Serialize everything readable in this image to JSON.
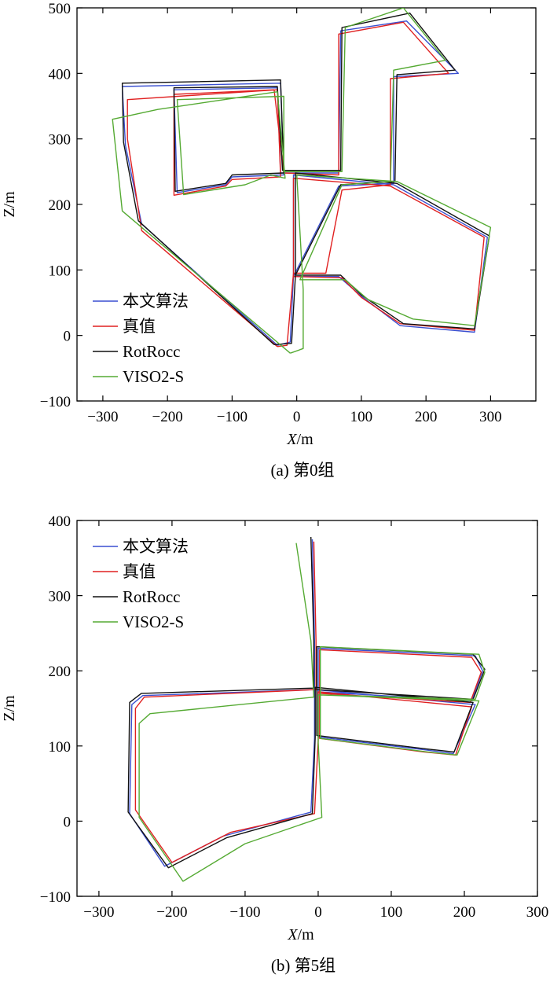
{
  "colors": {
    "ours": "#3a4fd0",
    "gt": "#e02020",
    "rotrocc": "#111111",
    "viso": "#55aa33"
  },
  "chart_data": [
    {
      "type": "line",
      "caption": "(a) 第0组",
      "xlabel_var": "X",
      "xlabel_unit": "/m",
      "ylabel": "Z/m",
      "xlim": [
        -340,
        370
      ],
      "ylim": [
        -100,
        500
      ],
      "xticks": [
        "−300",
        "−200",
        "−100",
        "0",
        "100",
        "200",
        "300"
      ],
      "yticks": [
        "−100",
        "0",
        "100",
        "200",
        "300",
        "400",
        "500"
      ],
      "legend_position": "bottom-left",
      "series": [
        {
          "name": "本文算法",
          "color": "#3a4fd0",
          "points": [
            [
              -30,
              -15
            ],
            [
              -240,
              170
            ],
            [
              -265,
              290
            ],
            [
              -270,
              380
            ],
            [
              -25,
              385
            ],
            [
              -20,
              245
            ],
            [
              -100,
              242
            ],
            [
              -110,
              230
            ],
            [
              -185,
              218
            ],
            [
              -190,
              375
            ],
            [
              -30,
              378
            ],
            [
              -25,
              248
            ],
            [
              65,
              248
            ],
            [
              68,
              465
            ],
            [
              170,
              480
            ],
            [
              250,
              400
            ],
            [
              150,
              395
            ],
            [
              150,
              232
            ],
            [
              65,
              228
            ],
            [
              -5,
              90
            ],
            [
              65,
              90
            ],
            [
              100,
              60
            ],
            [
              160,
              15
            ],
            [
              275,
              5
            ],
            [
              295,
              150
            ],
            [
              150,
              230
            ],
            [
              -5,
              245
            ],
            [
              -5,
              90
            ],
            [
              -10,
              -10
            ],
            [
              -30,
              -15
            ]
          ]
        },
        {
          "name": "真值",
          "color": "#e02020",
          "points": [
            [
              -30,
              -17
            ],
            [
              -240,
              160
            ],
            [
              -262,
              300
            ],
            [
              -262,
              360
            ],
            [
              -30,
              375
            ],
            [
              -25,
              242
            ],
            [
              -100,
              238
            ],
            [
              -110,
              228
            ],
            [
              -190,
              214
            ],
            [
              -190,
              368
            ],
            [
              -35,
              375
            ],
            [
              -20,
              248
            ],
            [
              65,
              245
            ],
            [
              65,
              460
            ],
            [
              165,
              478
            ],
            [
              235,
              400
            ],
            [
              145,
              392
            ],
            [
              145,
              230
            ],
            [
              70,
              222
            ],
            [
              45,
              95
            ],
            [
              -5,
              95
            ],
            [
              -5,
              90
            ],
            [
              70,
              88
            ],
            [
              100,
              58
            ],
            [
              160,
              18
            ],
            [
              275,
              8
            ],
            [
              290,
              150
            ],
            [
              145,
              228
            ],
            [
              -5,
              240
            ],
            [
              -5,
              95
            ],
            [
              -15,
              -15
            ],
            [
              -30,
              -17
            ]
          ]
        },
        {
          "name": "RotRocc",
          "color": "#111111",
          "points": [
            [
              -35,
              -14
            ],
            [
              -245,
              175
            ],
            [
              -268,
              295
            ],
            [
              -270,
              385
            ],
            [
              -25,
              390
            ],
            [
              -20,
              248
            ],
            [
              -100,
              245
            ],
            [
              -110,
              232
            ],
            [
              -188,
              220
            ],
            [
              -190,
              378
            ],
            [
              -30,
              380
            ],
            [
              -22,
              252
            ],
            [
              68,
              252
            ],
            [
              70,
              470
            ],
            [
              175,
              492
            ],
            [
              245,
              405
            ],
            [
              155,
              398
            ],
            [
              152,
              235
            ],
            [
              68,
              230
            ],
            [
              -2,
              92
            ],
            [
              68,
              92
            ],
            [
              100,
              62
            ],
            [
              165,
              18
            ],
            [
              275,
              10
            ],
            [
              298,
              152
            ],
            [
              155,
              232
            ],
            [
              -2,
              248
            ],
            [
              -2,
              92
            ],
            [
              -8,
              -12
            ],
            [
              -35,
              -14
            ]
          ]
        },
        {
          "name": "VISO2-S",
          "color": "#55aa33",
          "points": [
            [
              -10,
              -27
            ],
            [
              -270,
              190
            ],
            [
              -285,
              330
            ],
            [
              -215,
              345
            ],
            [
              -30,
              372
            ],
            [
              -18,
              240
            ],
            [
              -40,
              245
            ],
            [
              -80,
              230
            ],
            [
              -175,
              215
            ],
            [
              -185,
              360
            ],
            [
              -20,
              365
            ],
            [
              -20,
              250
            ],
            [
              70,
              250
            ],
            [
              75,
              470
            ],
            [
              165,
              500
            ],
            [
              230,
              420
            ],
            [
              150,
              405
            ],
            [
              145,
              235
            ],
            [
              70,
              230
            ],
            [
              5,
              85
            ],
            [
              75,
              85
            ],
            [
              110,
              55
            ],
            [
              180,
              25
            ],
            [
              275,
              15
            ],
            [
              300,
              165
            ],
            [
              155,
              235
            ],
            [
              0,
              245
            ],
            [
              10,
              70
            ],
            [
              10,
              -20
            ],
            [
              -10,
              -27
            ]
          ]
        }
      ]
    },
    {
      "type": "line",
      "caption": "(b) 第5组",
      "xlabel_var": "X",
      "xlabel_unit": "/m",
      "ylabel": "Z/m",
      "xlim": [
        -330,
        300
      ],
      "ylim": [
        -100,
        400
      ],
      "xticks": [
        "−300",
        "−200",
        "−100",
        "0",
        "100",
        "200",
        "300"
      ],
      "yticks": [
        "−100",
        "0",
        "100",
        "200",
        "300",
        "400"
      ],
      "legend_position": "top-left",
      "series": [
        {
          "name": "本文算法",
          "color": "#3a4fd0",
          "points": [
            [
              -8,
              375
            ],
            [
              -5,
              240
            ],
            [
              -5,
              175
            ],
            [
              -240,
              167
            ],
            [
              -255,
              155
            ],
            [
              -258,
              10
            ],
            [
              -210,
              -60
            ],
            [
              -130,
              -20
            ],
            [
              -10,
              12
            ],
            [
              -5,
              110
            ],
            [
              -5,
              175
            ],
            [
              215,
              155
            ],
            [
              185,
              90
            ],
            [
              145,
              95
            ],
            [
              0,
              112
            ],
            [
              0,
              230
            ],
            [
              215,
              220
            ],
            [
              225,
              200
            ],
            [
              210,
              160
            ],
            [
              0,
              172
            ]
          ]
        },
        {
          "name": "真值",
          "color": "#e02020",
          "points": [
            [
              -6,
              372
            ],
            [
              -3,
              240
            ],
            [
              -3,
              175
            ],
            [
              -238,
              165
            ],
            [
              -250,
              150
            ],
            [
              -250,
              15
            ],
            [
              -200,
              -55
            ],
            [
              -120,
              -15
            ],
            [
              -5,
              10
            ],
            [
              0,
              108
            ],
            [
              0,
              172
            ],
            [
              210,
              152
            ],
            [
              188,
              88
            ],
            [
              145,
              92
            ],
            [
              2,
              110
            ],
            [
              2,
              228
            ],
            [
              210,
              218
            ],
            [
              223,
              198
            ],
            [
              208,
              158
            ],
            [
              2,
              170
            ]
          ]
        },
        {
          "name": "RotRocc",
          "color": "#111111",
          "points": [
            [
              -10,
              378
            ],
            [
              -6,
              240
            ],
            [
              -6,
              177
            ],
            [
              -242,
              170
            ],
            [
              -258,
              158
            ],
            [
              -260,
              12
            ],
            [
              -205,
              -62
            ],
            [
              -125,
              -22
            ],
            [
              -8,
              10
            ],
            [
              -4,
              112
            ],
            [
              -4,
              178
            ],
            [
              212,
              158
            ],
            [
              186,
              92
            ],
            [
              148,
              96
            ],
            [
              -2,
              114
            ],
            [
              -2,
              232
            ],
            [
              212,
              222
            ],
            [
              228,
              202
            ],
            [
              212,
              162
            ],
            [
              -2,
              175
            ]
          ]
        },
        {
          "name": "VISO2-S",
          "color": "#55aa33",
          "points": [
            [
              -30,
              370
            ],
            [
              -10,
              240
            ],
            [
              -6,
              165
            ],
            [
              -230,
              143
            ],
            [
              -245,
              130
            ],
            [
              -245,
              5
            ],
            [
              -185,
              -80
            ],
            [
              -100,
              -30
            ],
            [
              5,
              5
            ],
            [
              0,
              105
            ],
            [
              0,
              168
            ],
            [
              220,
              160
            ],
            [
              190,
              88
            ],
            [
              150,
              92
            ],
            [
              3,
              110
            ],
            [
              3,
              232
            ],
            [
              220,
              222
            ],
            [
              228,
              198
            ],
            [
              215,
              162
            ],
            [
              3,
              168
            ]
          ]
        }
      ]
    }
  ]
}
